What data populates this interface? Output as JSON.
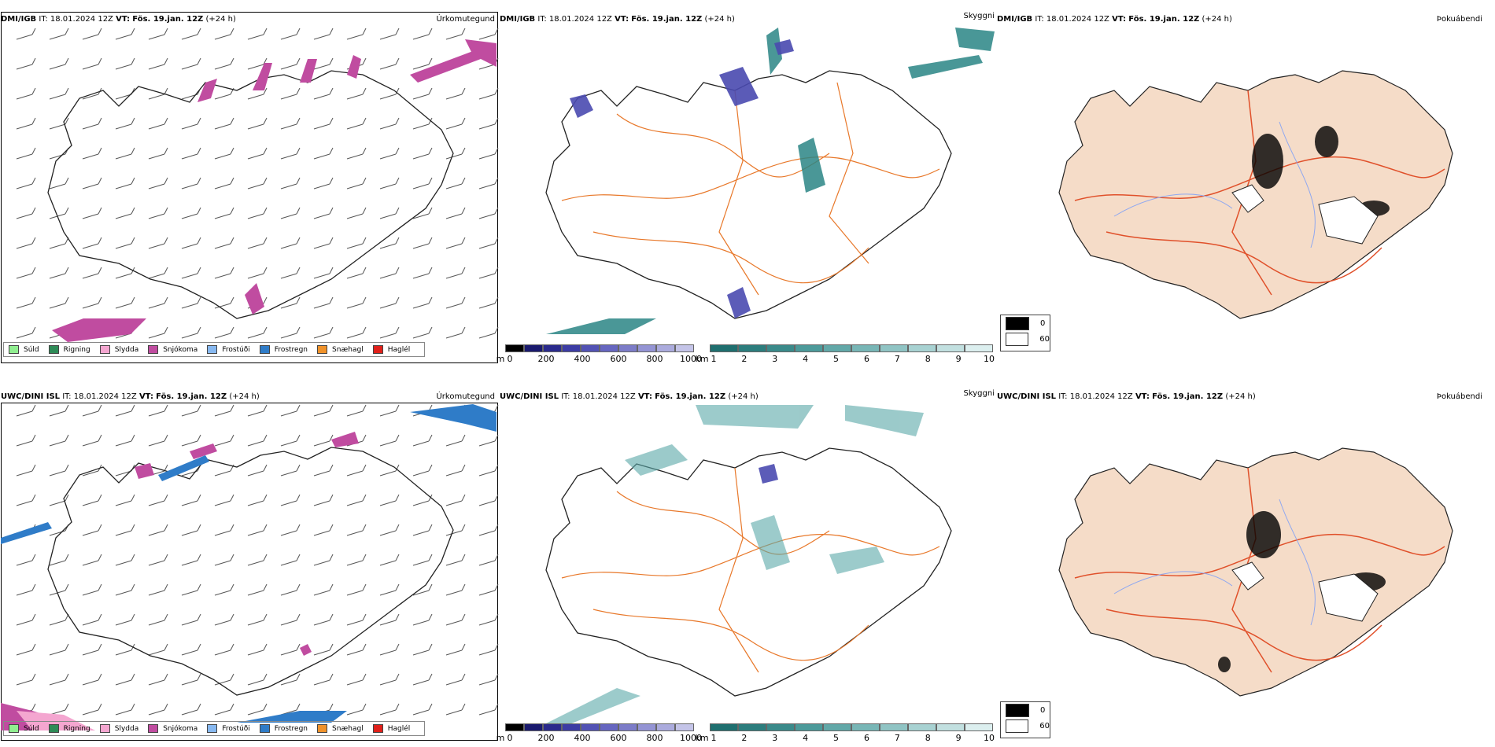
{
  "rows": [
    {
      "model": "DMI/IGB",
      "it_label": "IT:",
      "it_value": "18.01.2024 12Z",
      "vt_label": "VT:",
      "vt_value": "Fös. 19.jan. 12Z",
      "lead": "(+24 h)"
    },
    {
      "model": "UWC/DINI ISL",
      "it_label": "IT:",
      "it_value": "18.01.2024 12Z",
      "vt_label": "VT:",
      "vt_value": "Fös. 19.jan. 12Z",
      "lead": "(+24 h)"
    }
  ],
  "panels": {
    "precip_title": "Úrkomutegund",
    "vis_title": "Skyggni",
    "fog_title": "Þokuábendi"
  },
  "precip_legend": [
    {
      "label": "Súld",
      "color": "#90ee90"
    },
    {
      "label": "Rigning",
      "color": "#2e8b57"
    },
    {
      "label": "Slydda",
      "color": "#f4a6d0"
    },
    {
      "label": "Snjókoma",
      "color": "#c04ca0"
    },
    {
      "label": "Frostúði",
      "color": "#87b8f0"
    },
    {
      "label": "Frostregn",
      "color": "#2f7cc8"
    },
    {
      "label": "Snæhagl",
      "color": "#f0922a"
    },
    {
      "label": "Haglél",
      "color": "#e0201a"
    }
  ],
  "vis_colorbar": {
    "m_unit": "m",
    "m_ticks": [
      "0",
      "200",
      "400",
      "600",
      "800",
      "1000"
    ],
    "km_unit": "km",
    "km_ticks": [
      "1",
      "2",
      "3",
      "4",
      "5",
      "6",
      "7",
      "8",
      "9",
      "10"
    ],
    "m_colors": [
      "#000000",
      "#1a1a6e",
      "#2a2a8c",
      "#3c3ca4",
      "#5252b4",
      "#6666c0",
      "#7c7cc8",
      "#9494d4",
      "#ababdd",
      "#c4c4e8"
    ],
    "km_colors": [
      "#1f6f6f",
      "#2c7d7d",
      "#3a8a8a",
      "#4c9a9a",
      "#62a8a8",
      "#78b6b6",
      "#90c4c4",
      "#a8d2d2",
      "#c2e0e0",
      "#dcefef"
    ]
  },
  "fog_legend": [
    {
      "label": "0",
      "color": "#000000"
    },
    {
      "label": "60",
      "color": "#ffffff"
    }
  ],
  "colors": {
    "snow": "#c04ca0",
    "freezing_rain": "#2f7cc8",
    "sleet": "#f4a6d0",
    "visibility_teal": "#2a8585",
    "visibility_blue": "#4a4ab0",
    "roads": "#e8782a",
    "land": "#f5dcc8",
    "rivers": "#8fa8f0"
  }
}
